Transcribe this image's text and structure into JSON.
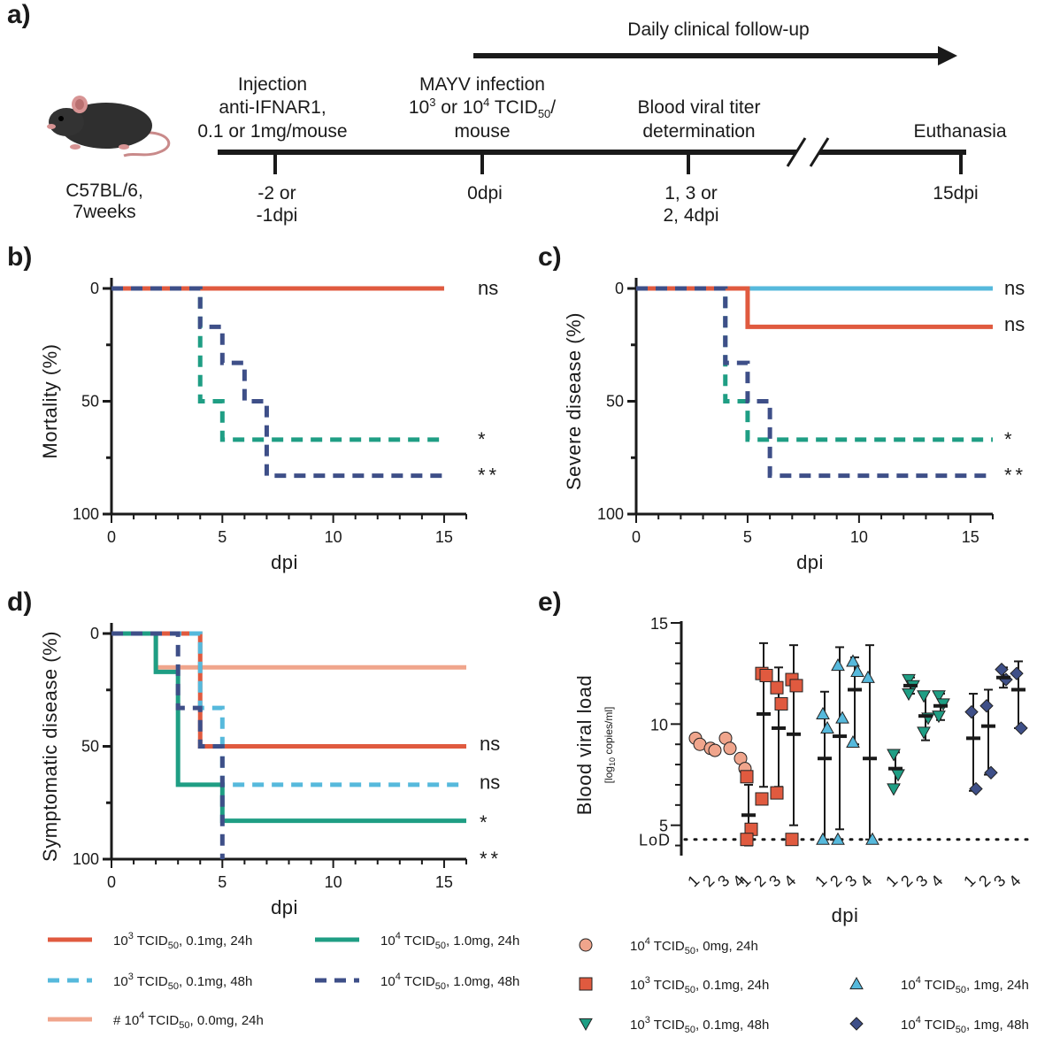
{
  "panels": {
    "a": "a)",
    "b": "b)",
    "c": "c)",
    "d": "d)",
    "e": "e)"
  },
  "timeline": {
    "daily_followup": "Daily clinical follow-up",
    "mouse_strain": "C57BL/6,",
    "mouse_age": "7weeks",
    "injection_lines": [
      "Injection",
      "anti-IFNAR1,",
      "0.1 or 1mg/mouse"
    ],
    "infection_line1": "MAYV infection",
    "infection_line3": "mouse",
    "titer_lines": [
      "Blood viral titer",
      "determination"
    ],
    "euthanasia": "Euthanasia",
    "day_labels": [
      {
        "key": "minus2",
        "lines": [
          "-2 or",
          "-1dpi"
        ]
      },
      {
        "key": "zero",
        "lines": [
          "0dpi"
        ]
      },
      {
        "key": "sampling",
        "lines": [
          "1, 3 or",
          "2, 4dpi"
        ]
      },
      {
        "key": "end",
        "lines": [
          "15dpi"
        ]
      }
    ]
  },
  "colors": {
    "red": "#e05a3f",
    "lightblue": "#56b9dc",
    "salmon": "#f0a58c",
    "green": "#1f9e84",
    "navy": "#3e4f88"
  },
  "chart_data": [
    {
      "id": "b",
      "type": "line",
      "step": true,
      "ylabel": "Mortality (%)",
      "xlabel": "dpi",
      "xlim": [
        0,
        16
      ],
      "ylim": [
        0,
        100
      ],
      "y_inverted": true,
      "xticks": [
        0,
        5,
        10,
        15
      ],
      "yticks": [
        0,
        50,
        100
      ],
      "series": [
        {
          "group": "salmon",
          "dash": false,
          "x": [
            0,
            15
          ],
          "y": [
            0,
            0
          ]
        },
        {
          "group": "lightblue",
          "dash": true,
          "x": [
            0,
            15
          ],
          "y": [
            0,
            0
          ]
        },
        {
          "group": "red",
          "dash": false,
          "x": [
            0,
            15
          ],
          "y": [
            0,
            0
          ]
        },
        {
          "group": "green",
          "dash": true,
          "x": [
            0,
            4,
            5,
            15
          ],
          "y": [
            0,
            50,
            67,
            67
          ]
        },
        {
          "group": "navy",
          "dash": true,
          "x": [
            0,
            4,
            5,
            6,
            7,
            15
          ],
          "y": [
            0,
            17,
            33,
            50,
            83,
            83
          ]
        }
      ],
      "significance": [
        {
          "text": "ns",
          "y": 0
        },
        {
          "text": "*",
          "y": 67
        },
        {
          "text": "**",
          "y": 83
        }
      ]
    },
    {
      "id": "c",
      "type": "line",
      "step": true,
      "ylabel": "Severe disease (%)",
      "xlabel": "dpi",
      "xlim": [
        0,
        16
      ],
      "ylim": [
        0,
        100
      ],
      "y_inverted": true,
      "xticks": [
        0,
        5,
        10,
        15
      ],
      "yticks": [
        0,
        50,
        100
      ],
      "series": [
        {
          "group": "salmon",
          "dash": false,
          "x": [
            0,
            16
          ],
          "y": [
            0,
            0
          ]
        },
        {
          "group": "lightblue",
          "dash": false,
          "x": [
            0,
            16
          ],
          "y": [
            0,
            0
          ]
        },
        {
          "group": "red",
          "dash": false,
          "x": [
            0,
            5,
            16
          ],
          "y": [
            0,
            17,
            17
          ]
        },
        {
          "group": "green",
          "dash": true,
          "x": [
            0,
            4,
            5,
            16
          ],
          "y": [
            0,
            50,
            67,
            67
          ]
        },
        {
          "group": "navy",
          "dash": true,
          "x": [
            0,
            4,
            5,
            6,
            16
          ],
          "y": [
            0,
            33,
            50,
            83,
            83
          ]
        }
      ],
      "significance": [
        {
          "text": "ns",
          "y": 0
        },
        {
          "text": "ns",
          "y": 16
        },
        {
          "text": "*",
          "y": 67
        },
        {
          "text": "**",
          "y": 83
        }
      ]
    },
    {
      "id": "d",
      "type": "line",
      "step": true,
      "ylabel": "Symptomatic disease (%)",
      "xlabel": "dpi",
      "xlim": [
        0,
        16
      ],
      "ylim": [
        0,
        100
      ],
      "y_inverted": true,
      "xticks": [
        0,
        5,
        10,
        15
      ],
      "yticks": [
        0,
        50,
        100
      ],
      "series": [
        {
          "group": "salmon",
          "dash": false,
          "x": [
            0,
            2,
            16
          ],
          "y": [
            0,
            15,
            15
          ]
        },
        {
          "group": "red",
          "dash": false,
          "x": [
            0,
            4,
            16
          ],
          "y": [
            0,
            50,
            50
          ]
        },
        {
          "group": "lightblue",
          "dash": true,
          "x": [
            0,
            4,
            5,
            16
          ],
          "y": [
            0,
            33,
            67,
            67
          ]
        },
        {
          "group": "green",
          "dash": false,
          "x": [
            0,
            2,
            3,
            5,
            16
          ],
          "y": [
            0,
            17,
            67,
            83,
            83
          ]
        },
        {
          "group": "navy",
          "dash": true,
          "x": [
            0,
            3,
            4,
            5
          ],
          "y": [
            0,
            33,
            50,
            100
          ]
        }
      ],
      "significance": [
        {
          "text": "ns",
          "y": 49
        },
        {
          "text": "ns",
          "y": 66
        },
        {
          "text": "*",
          "y": 84
        },
        {
          "text": "**",
          "y": 100
        }
      ]
    },
    {
      "id": "e",
      "type": "scatter",
      "ylabel": "Blood viral load",
      "ylabel_unit_main": "[log",
      "ylabel_unit_sub": "10",
      "ylabel_unit_rest": " copies/ml]",
      "xlabel": "dpi",
      "ylim": [
        3.5,
        15
      ],
      "yticks": [
        5,
        10,
        15
      ],
      "lod": {
        "label": "LoD",
        "value": 4.3
      },
      "groups": [
        {
          "marker": "circle",
          "color": "salmon",
          "days": [
            {
              "day": "1",
              "points": [
                9.3,
                9.0
              ],
              "mean": null,
              "sd": null
            },
            {
              "day": "2",
              "points": [
                8.8,
                8.7
              ],
              "mean": null,
              "sd": null
            },
            {
              "day": "3",
              "points": [
                9.3,
                8.8
              ],
              "mean": null,
              "sd": null
            },
            {
              "day": "4",
              "points": [
                8.3,
                7.8
              ],
              "mean": null,
              "sd": null
            }
          ]
        },
        {
          "marker": "square",
          "color": "red",
          "days": [
            {
              "day": "1",
              "points": [
                7.4,
                4.8,
                4.3
              ],
              "mean": 5.5,
              "sd": [
                4.0,
                7.0
              ]
            },
            {
              "day": "2",
              "points": [
                12.5,
                12.4,
                6.3
              ],
              "mean": 10.5,
              "sd": [
                6.9,
                14.0
              ]
            },
            {
              "day": "3",
              "points": [
                11.8,
                11.0,
                6.6
              ],
              "mean": 9.8,
              "sd": [
                6.9,
                12.8
              ]
            },
            {
              "day": "4",
              "points": [
                12.2,
                11.9,
                4.3
              ],
              "mean": 9.5,
              "sd": [
                5.0,
                13.9
              ]
            }
          ]
        },
        {
          "marker": "triangle",
          "color": "lightblue",
          "days": [
            {
              "day": "1",
              "points": [
                10.5,
                9.8,
                4.3
              ],
              "mean": 8.3,
              "sd": [
                4.3,
                11.6
              ]
            },
            {
              "day": "2",
              "points": [
                12.9,
                10.3,
                4.3
              ],
              "mean": 9.4,
              "sd": [
                4.8,
                13.8
              ]
            },
            {
              "day": "3",
              "points": [
                13.1,
                12.6,
                9.1
              ],
              "mean": 11.7,
              "sd": [
                9.0,
                13.3
              ]
            },
            {
              "day": "4",
              "points": [
                12.3,
                4.3
              ],
              "mean": 8.3,
              "sd": [
                4.3,
                13.9
              ]
            }
          ]
        },
        {
          "marker": "triangle-down",
          "color": "green",
          "days": [
            {
              "day": "1",
              "points": [
                8.5,
                7.5,
                6.8
              ],
              "mean": 7.8,
              "sd": [
                7.0,
                8.6
              ]
            },
            {
              "day": "2",
              "points": [
                12.2,
                11.9,
                11.5
              ],
              "mean": 11.9,
              "sd": [
                11.5,
                12.3
              ]
            },
            {
              "day": "3",
              "points": [
                11.4,
                10.3,
                9.6
              ],
              "mean": 10.4,
              "sd": [
                9.2,
                11.6
              ]
            },
            {
              "day": "4",
              "points": [
                11.4,
                11.0,
                10.4
              ],
              "mean": 10.9,
              "sd": [
                10.2,
                11.5
              ]
            }
          ]
        },
        {
          "marker": "diamond",
          "color": "navy",
          "days": [
            {
              "day": "1",
              "points": [
                10.6,
                6.8
              ],
              "mean": 9.3,
              "sd": [
                6.7,
                11.5
              ]
            },
            {
              "day": "2",
              "points": [
                10.9,
                7.6
              ],
              "mean": 9.9,
              "sd": [
                7.5,
                11.7
              ]
            },
            {
              "day": "3",
              "points": [
                12.7,
                12.2
              ],
              "mean": 12.3,
              "sd": [
                11.8,
                12.8
              ]
            },
            {
              "day": "4",
              "points": [
                12.5,
                9.8
              ],
              "mean": 11.7,
              "sd": [
                9.8,
                13.1
              ]
            }
          ]
        }
      ]
    }
  ],
  "legend_lines": [
    {
      "color": "red",
      "dash": false,
      "prefix": "",
      "exp": "3",
      "rest": ", 0.1mg, 24h"
    },
    {
      "color": "green",
      "dash": false,
      "prefix": "",
      "exp": "4",
      "rest": ", 1.0mg, 24h"
    },
    {
      "color": "lightblue",
      "dash": true,
      "prefix": "",
      "exp": "3",
      "rest": ", 0.1mg, 48h"
    },
    {
      "color": "navy",
      "dash": true,
      "prefix": "",
      "exp": "4",
      "rest": ", 1.0mg, 48h"
    },
    {
      "color": "salmon",
      "dash": false,
      "prefix": "# ",
      "exp": "4",
      "rest": ", 0.0mg, 24h"
    }
  ],
  "legend_markers": [
    {
      "marker": "circle",
      "color": "salmon",
      "exp": "4",
      "rest": ", 0mg, 24h"
    },
    {
      "marker": "square",
      "color": "red",
      "exp": "3",
      "rest": ", 0.1mg, 24h"
    },
    {
      "marker": "triangle",
      "color": "lightblue",
      "exp": "4",
      "rest": ", 1mg, 24h"
    },
    {
      "marker": "triangle-down",
      "color": "green",
      "exp": "3",
      "rest": ", 0.1mg, 48h"
    },
    {
      "marker": "diamond",
      "color": "navy",
      "exp": "4",
      "rest": ", 1mg, 48h"
    }
  ],
  "legend_unit": "TCID",
  "legend_unit_sub": "50",
  "legend_base": "10"
}
